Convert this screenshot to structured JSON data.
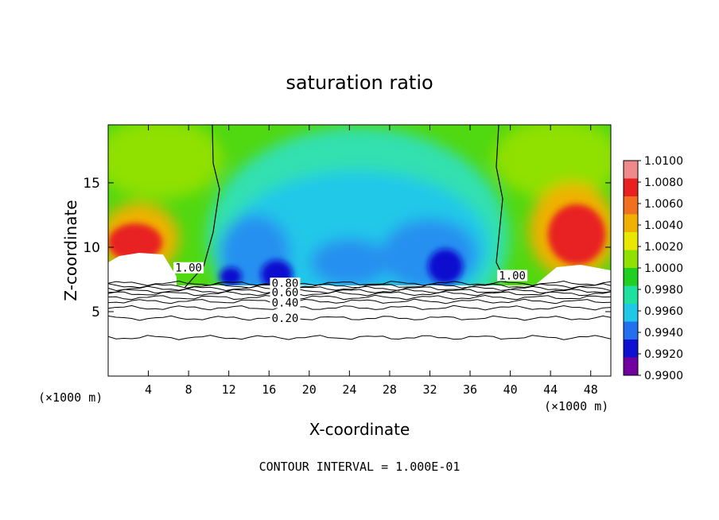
{
  "chart_data": {
    "type": "heatmap",
    "title": "saturation ratio",
    "xlabel": "X-coordinate",
    "ylabel": "Z-coordinate",
    "x_unit_left": "(×1000 m)",
    "x_unit_right": "(×1000 m)",
    "footer": "CONTOUR INTERVAL = 1.000E-01",
    "xlim": [
      0,
      50
    ],
    "ylim": [
      0,
      19.5
    ],
    "x_ticks": [
      4,
      8,
      12,
      16,
      20,
      24,
      28,
      32,
      36,
      40,
      44,
      48
    ],
    "x_tick_labels": [
      "4",
      "8",
      "12",
      "16",
      "20",
      "24",
      "28",
      "32",
      "36",
      "40",
      "44",
      "48"
    ],
    "y_ticks": [
      5,
      10,
      15
    ],
    "y_tick_labels": [
      "5",
      "10",
      "15"
    ],
    "colorbar": {
      "min": 0.99,
      "max": 1.01,
      "labels": [
        "1.0100",
        "1.0080",
        "1.0060",
        "1.0040",
        "1.0020",
        "1.0000",
        "0.9980",
        "0.9960",
        "0.9940",
        "0.9920",
        "0.9900"
      ],
      "colors": [
        "#f08a8a",
        "#e82020",
        "#f07020",
        "#f0b000",
        "#e8e800",
        "#90e000",
        "#20d020",
        "#20e0a0",
        "#20c8e8",
        "#2070f0",
        "#1010d0",
        "#7000a0"
      ]
    },
    "contour_labels": [
      {
        "text": "1.00",
        "x": 8.0,
        "y": 8.1
      },
      {
        "text": "1.00",
        "x": 40.2,
        "y": 7.5
      },
      {
        "text": "0.80",
        "x": 17.6,
        "y": 6.9
      },
      {
        "text": "0.60",
        "x": 17.6,
        "y": 6.2
      },
      {
        "text": "0.40",
        "x": 17.6,
        "y": 5.4
      },
      {
        "text": "0.20",
        "x": 17.6,
        "y": 4.2
      }
    ],
    "contour_levels": [
      1.0,
      0.9,
      0.8,
      0.7,
      0.6,
      0.5,
      0.4,
      0.3,
      0.2,
      0.1
    ],
    "contour_heights": [
      7.2,
      7.0,
      6.8,
      6.6,
      6.4,
      6.1,
      5.8,
      5.3,
      4.5,
      3.0
    ]
  }
}
